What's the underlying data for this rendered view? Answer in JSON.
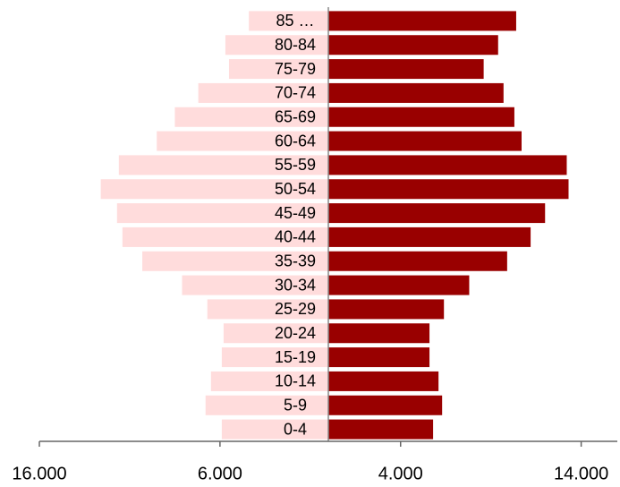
{
  "chart_data": {
    "type": "pyramid",
    "categories": [
      "85 …",
      "80-84",
      "75-79",
      "70-74",
      "65-69",
      "60-64",
      "55-59",
      "50-54",
      "45-49",
      "40-44",
      "35-39",
      "30-34",
      "25-29",
      "20-24",
      "15-19",
      "10-14",
      "5-9",
      "0-4"
    ],
    "series": [
      {
        "color": "#ffdcdc",
        "values": [
          -4400,
          -5700,
          -5500,
          -7200,
          -8500,
          -9500,
          -11600,
          -12600,
          -11700,
          -11400,
          -10300,
          -8100,
          -6700,
          -5800,
          -5900,
          -6500,
          -6800,
          -5900
        ]
      },
      {
        "color": "#990000",
        "values": [
          10400,
          9400,
          8600,
          9700,
          10300,
          10700,
          13200,
          13300,
          12000,
          11200,
          9900,
          7800,
          6400,
          5600,
          5600,
          6100,
          6300,
          5800
        ]
      }
    ],
    "xlim": [
      -16000,
      16000
    ],
    "xticks": [
      {
        "value": -16000,
        "label": "16.000"
      },
      {
        "value": -6000,
        "label": "6.000"
      },
      {
        "value": 4000,
        "label": "4.000"
      },
      {
        "value": 14000,
        "label": "14.000"
      }
    ]
  }
}
